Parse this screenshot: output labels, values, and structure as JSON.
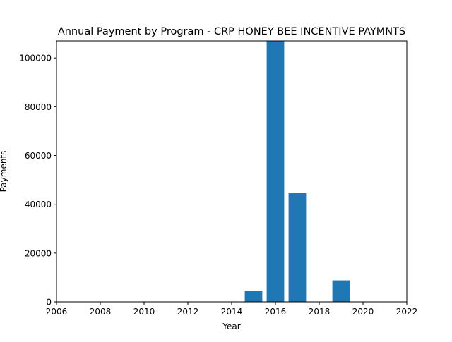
{
  "chart_data": {
    "type": "bar",
    "title": "Annual Payment by Program - CRP HONEY BEE INCENTIVE PAYMNTS",
    "xlabel": "Year",
    "ylabel": "Payments",
    "x": [
      2015,
      2016,
      2017,
      2019
    ],
    "values": [
      4500,
      107000,
      44600,
      8800
    ],
    "xlim": [
      2006,
      2022
    ],
    "ylim": [
      0,
      107000
    ],
    "xticks": [
      "2006",
      "2008",
      "2010",
      "2012",
      "2014",
      "2016",
      "2018",
      "2020",
      "2022"
    ],
    "yticks": [
      "0",
      "20000",
      "40000",
      "60000",
      "80000",
      "100000"
    ],
    "grid": false,
    "legend": "none",
    "bar_color": "#1f77b4"
  }
}
